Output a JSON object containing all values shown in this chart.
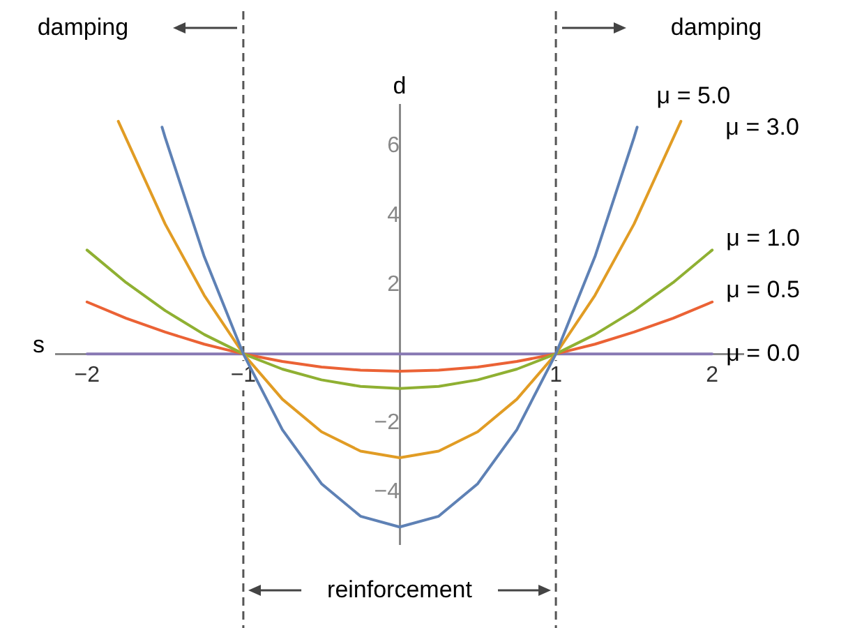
{
  "chart_data": {
    "type": "line",
    "xlabel": "s",
    "ylabel": "d",
    "xlim": [
      -2.2,
      2.2
    ],
    "ylim": [
      -5.5,
      7.2
    ],
    "xticks": [
      {
        "value": -2,
        "label": "−2"
      },
      {
        "value": -1,
        "label": "−1"
      },
      1,
      2
    ],
    "yticks": [
      {
        "value": -4,
        "label": "−4"
      },
      {
        "value": -2,
        "label": "−2"
      },
      2,
      4,
      6
    ],
    "grid": false,
    "legend": false,
    "marker": "none",
    "line_style": "solid",
    "series": [
      {
        "name": "μ = 5.0",
        "color": "#5e81b5",
        "x": [
          -1.52,
          -1.5,
          -1.25,
          -1,
          -0.75,
          -0.5,
          -0.25,
          0,
          0.25,
          0.5,
          0.75,
          1,
          1.25,
          1.5,
          1.52
        ],
        "values": [
          6.55,
          6.25,
          2.81,
          0,
          -2.19,
          -3.75,
          -4.69,
          -5,
          -4.69,
          -3.75,
          -2.19,
          0,
          2.81,
          6.25,
          6.55
        ]
      },
      {
        "name": "μ = 3.0",
        "color": "#e19c24",
        "x": [
          -1.8,
          -1.5,
          -1.25,
          -1,
          -0.75,
          -0.5,
          -0.25,
          0,
          0.25,
          0.5,
          0.75,
          1,
          1.25,
          1.5,
          1.8
        ],
        "values": [
          6.72,
          3.75,
          1.69,
          0,
          -1.31,
          -2.25,
          -2.81,
          -3,
          -2.81,
          -2.25,
          -1.31,
          0,
          1.69,
          3.75,
          6.72
        ]
      },
      {
        "name": "μ = 1.0",
        "color": "#8fb032",
        "x": [
          -2,
          -1.75,
          -1.5,
          -1.25,
          -1,
          -0.75,
          -0.5,
          -0.25,
          0,
          0.25,
          0.5,
          0.75,
          1,
          1.25,
          1.5,
          1.75,
          2
        ],
        "values": [
          3,
          2.06,
          1.25,
          0.56,
          0,
          -0.44,
          -0.75,
          -0.94,
          -1,
          -0.94,
          -0.75,
          -0.44,
          0,
          0.56,
          1.25,
          2.06,
          3
        ]
      },
      {
        "name": "μ = 0.5",
        "color": "#eb6235",
        "x": [
          -2,
          -1.75,
          -1.5,
          -1.25,
          -1,
          -0.75,
          -0.5,
          -0.25,
          0,
          0.25,
          0.5,
          0.75,
          1,
          1.25,
          1.5,
          1.75,
          2
        ],
        "values": [
          1.5,
          1.03,
          0.63,
          0.28,
          0,
          -0.22,
          -0.38,
          -0.47,
          -0.5,
          -0.47,
          -0.38,
          -0.22,
          0,
          0.28,
          0.63,
          1.03,
          1.5
        ]
      },
      {
        "name": "μ = 0.0",
        "color": "#8778b3",
        "x": [
          -2,
          2
        ],
        "values": [
          0,
          0
        ]
      }
    ],
    "ref_lines": [
      {
        "axis": "x",
        "value": -1,
        "color": "#555555",
        "line_style": "dashed"
      },
      {
        "axis": "x",
        "value": 1,
        "color": "#555555",
        "line_style": "dashed"
      }
    ],
    "annotations": [
      "damping",
      "damping",
      "reinforcement"
    ]
  }
}
